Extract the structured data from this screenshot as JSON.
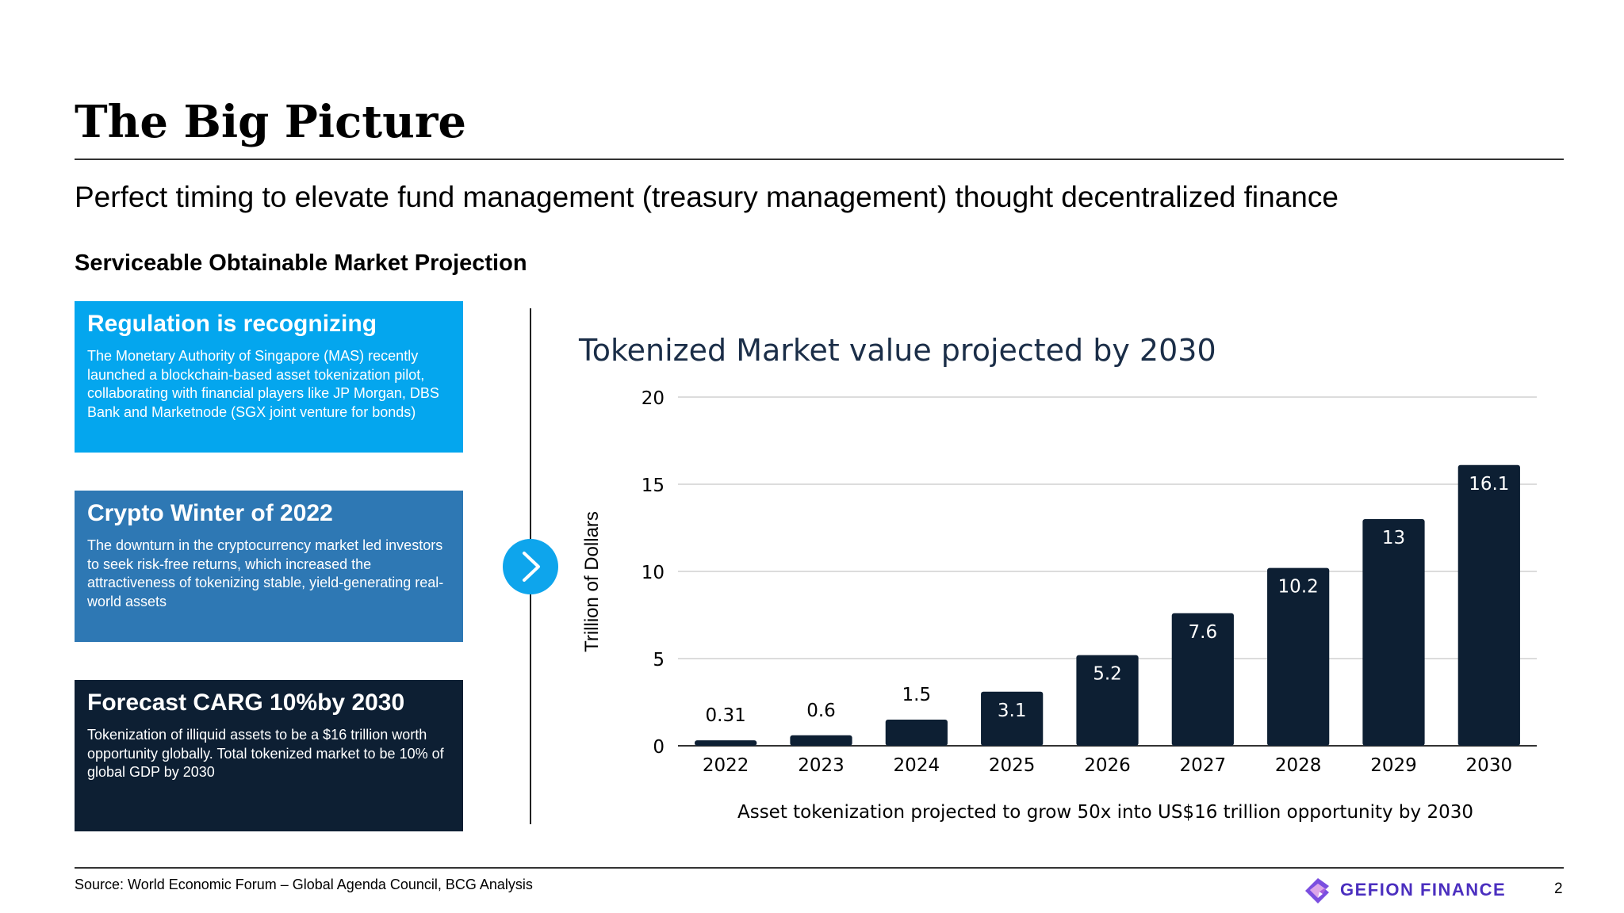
{
  "title": "The Big Picture",
  "subtitle": "Perfect timing to elevate fund management (treasury management) thought decentralized finance",
  "section_heading": "Serviceable Obtainable Market Projection",
  "cards": [
    {
      "title": "Regulation is recognizing",
      "body": "The Monetary Authority of Singapore (MAS) recently launched a blockchain-based asset tokenization pilot, collaborating with financial players like JP Morgan, DBS Bank and Marketnode (SGX joint venture for bonds)",
      "color": "#04a6ee"
    },
    {
      "title": "Crypto Winter of 2022",
      "body": "The downturn in the cryptocurrency market led investors to seek risk-free returns, which increased the attractiveness of tokenizing stable, yield-generating real-world assets",
      "color": "#2e78b4"
    },
    {
      "title": "Forecast CARG 10%by 2030",
      "body": "Tokenization of illiquid assets to be a $16 trillion worth opportunity globally. Total tokenized market to be 10% of global GDP by 2030",
      "color": "#0d1f33"
    }
  ],
  "chart_data": {
    "type": "bar",
    "title": "Tokenized Market value projected by 2030",
    "categories": [
      "2022",
      "2023",
      "2024",
      "2025",
      "2026",
      "2027",
      "2028",
      "2029",
      "2030"
    ],
    "values": [
      0.31,
      0.6,
      1.5,
      3.1,
      5.2,
      7.6,
      10.2,
      13,
      16.1
    ],
    "labels": [
      "0.31",
      "0.6",
      "1.5",
      "3.1",
      "5.2",
      "7.6",
      "10.2",
      "13",
      "16.1"
    ],
    "ylabel": "Trillion of Dollars",
    "xlabel": "Asset tokenization projected to grow 50x into US$16 trillion opportunity by 2030",
    "ylim": [
      0,
      20
    ],
    "yticks": [
      "0",
      "5",
      "10",
      "15",
      "20"
    ],
    "grid": true,
    "bar_color": "#0d1f33",
    "title_color": "#1b2e48"
  },
  "footer": {
    "source": "Source: World Economic Forum – Global Agenda Council, BCG Analysis",
    "brand": "GEFION FINANCE",
    "page": "2",
    "brand_color": "#4b2fbf"
  },
  "icons": {
    "arrow": "chevron-right-icon",
    "logo": "gefion-logo-icon"
  }
}
